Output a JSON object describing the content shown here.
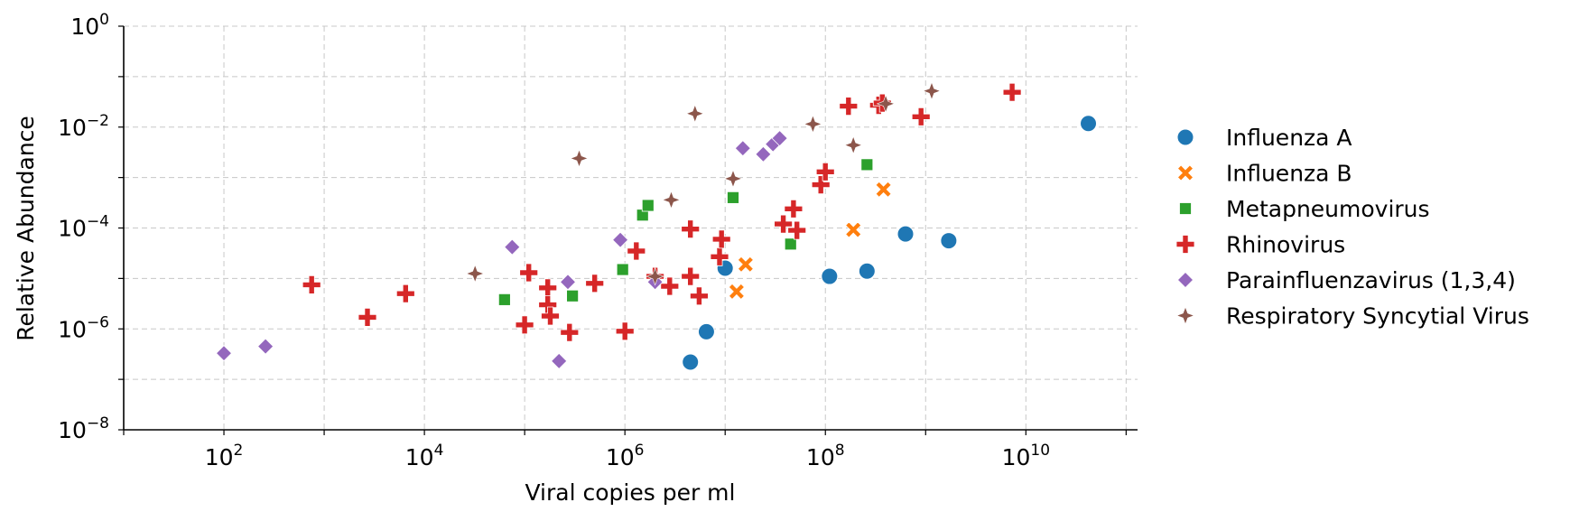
{
  "chart_data": {
    "type": "scatter",
    "title": "",
    "xlabel": "Viral copies per ml",
    "ylabel": "Relative Abundance",
    "xscale": "log",
    "yscale": "log",
    "xlim": [
      10,
      130000000000.0
    ],
    "ylim": [
      1e-08,
      1
    ],
    "x_ticks": [
      {
        "base": "10",
        "exp": "2",
        "value": 100
      },
      {
        "base": "10",
        "exp": "4",
        "value": 10000
      },
      {
        "base": "10",
        "exp": "6",
        "value": 1000000
      },
      {
        "base": "10",
        "exp": "8",
        "value": 100000000
      },
      {
        "base": "10",
        "exp": "10",
        "value": 10000000000
      }
    ],
    "y_ticks": [
      {
        "base": "10",
        "exp": "0",
        "value": 1
      },
      {
        "base": "10",
        "exp": "−2",
        "value": 0.01
      },
      {
        "base": "10",
        "exp": "−4",
        "value": 0.0001
      },
      {
        "base": "10",
        "exp": "−6",
        "value": 1e-06
      },
      {
        "base": "10",
        "exp": "−8",
        "value": 1e-08
      }
    ],
    "grid": true,
    "legend_position": "right",
    "series": [
      {
        "name": "Influenza A",
        "color": "#1f77b4",
        "marker": "circle",
        "points": [
          [
            4500000.0,
            2.2e-07
          ],
          [
            6500000.0,
            8.8e-07
          ],
          [
            10000000.0,
            1.6e-05
          ],
          [
            110000000.0,
            1.1e-05
          ],
          [
            260000000.0,
            1.4e-05
          ],
          [
            630000000.0,
            7.6e-05
          ],
          [
            1700000000.0,
            5.6e-05
          ],
          [
            42000000000.0,
            0.0118
          ]
        ]
      },
      {
        "name": "Influenza B",
        "color": "#ff7f0e",
        "marker": "x",
        "points": [
          [
            13000000.0,
            5.5e-06
          ],
          [
            16000000.0,
            1.9e-05
          ],
          [
            190000000.0,
            9.2e-05
          ],
          [
            380000000.0,
            0.00058
          ]
        ]
      },
      {
        "name": "Metapneumovirus",
        "color": "#2ca02c",
        "marker": "square",
        "points": [
          [
            63000.0,
            3.8e-06
          ],
          [
            300000.0,
            4.5e-06
          ],
          [
            950000.0,
            1.5e-05
          ],
          [
            1500000.0,
            0.00018
          ],
          [
            1700000.0,
            0.00028
          ],
          [
            12000000.0,
            0.0004
          ],
          [
            45000000.0,
            4.8e-05
          ],
          [
            260000000.0,
            0.0018
          ]
        ]
      },
      {
        "name": "Rhinovirus",
        "color": "#d62728",
        "marker": "plus",
        "points": [
          [
            750,
            7.5e-06
          ],
          [
            2700.0,
            1.7e-06
          ],
          [
            6500.0,
            5e-06
          ],
          [
            100000.0,
            1.2e-06
          ],
          [
            110000.0,
            1.3e-05
          ],
          [
            170000.0,
            6.5e-06
          ],
          [
            170000.0,
            3e-06
          ],
          [
            180000.0,
            1.8e-06
          ],
          [
            280000.0,
            8.5e-07
          ],
          [
            500000.0,
            8e-06
          ],
          [
            1000000.0,
            9e-07
          ],
          [
            1300000.0,
            3.5e-05
          ],
          [
            2000000.0,
            1.1e-05
          ],
          [
            2800000.0,
            7e-06
          ],
          [
            4500000.0,
            1.1e-05
          ],
          [
            4500000.0,
            9.5e-05
          ],
          [
            5500000.0,
            4.5e-06
          ],
          [
            8800000.0,
            2.7e-05
          ],
          [
            9200000.0,
            6e-05
          ],
          [
            38000000.0,
            0.00012
          ],
          [
            48000000.0,
            0.00024
          ],
          [
            52000000.0,
            9e-05
          ],
          [
            90000000.0,
            0.00072
          ],
          [
            100000000.0,
            0.0013
          ],
          [
            170000000.0,
            0.026
          ],
          [
            340000000.0,
            0.027
          ],
          [
            370000000.0,
            0.03
          ],
          [
            900000000.0,
            0.016
          ],
          [
            7300000000.0,
            0.049
          ]
        ]
      },
      {
        "name": "Parainfluenzavirus (1,3,4)",
        "color": "#9467bd",
        "marker": "diamond",
        "points": [
          [
            100,
            3.3e-07
          ],
          [
            260,
            4.5e-07
          ],
          [
            75000.0,
            4.2e-05
          ],
          [
            220000.0,
            2.3e-07
          ],
          [
            270000.0,
            8.5e-06
          ],
          [
            900000.0,
            5.8e-05
          ],
          [
            2000000.0,
            8.5e-06
          ],
          [
            15000000.0,
            0.0038
          ],
          [
            24000000.0,
            0.0029
          ],
          [
            30000000.0,
            0.0046
          ],
          [
            35000000.0,
            0.006
          ]
        ]
      },
      {
        "name": "Respiratory Syncytial Virus",
        "color": "#8c564b",
        "marker": "star4",
        "points": [
          [
            32000.0,
            1.25e-05
          ],
          [
            350000.0,
            0.0024
          ],
          [
            2000000.0,
            1.1e-05
          ],
          [
            2900000.0,
            0.00036
          ],
          [
            5000000.0,
            0.0185
          ],
          [
            12000000.0,
            0.00095
          ],
          [
            75000000.0,
            0.0115
          ],
          [
            190000000.0,
            0.0044
          ],
          [
            400000000.0,
            0.029
          ],
          [
            1150000000.0,
            0.052
          ]
        ]
      }
    ]
  }
}
